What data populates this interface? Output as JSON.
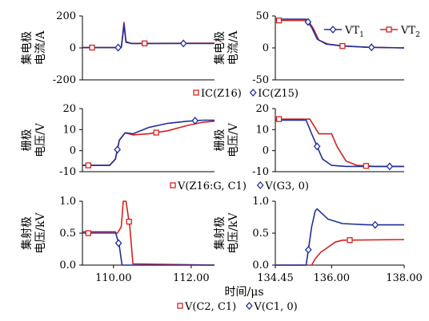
{
  "colors": {
    "red": "#d62020",
    "blue": "#1f2f9c",
    "axis": "#000000"
  },
  "chart_data": [
    {
      "id": "p1",
      "type": "line",
      "ylabel": [
        "集电极",
        "电流/A"
      ],
      "ylim": [
        -200,
        200
      ],
      "yticks": [
        -200,
        0,
        200
      ],
      "xlim": [
        109.2,
        112.6
      ],
      "xticks": [],
      "series": [
        {
          "key": "red",
          "x": [
            109.2,
            110.0,
            110.2,
            110.24,
            110.27,
            110.32,
            110.45,
            112.6
          ],
          "y": [
            2,
            2,
            2,
            90,
            160,
            40,
            28,
            30
          ],
          "marker": "square",
          "markers_at": [
            109.45,
            110.8
          ]
        },
        {
          "key": "blue",
          "x": [
            109.2,
            110.0,
            110.2,
            110.24,
            110.27,
            110.32,
            110.45,
            112.6
          ],
          "y": [
            2,
            2,
            2,
            80,
            150,
            35,
            28,
            28
          ],
          "marker": "diamond",
          "markers_at": [
            110.12,
            111.8
          ]
        }
      ]
    },
    {
      "id": "p2",
      "type": "line",
      "ylabel": [
        "集电极",
        "电流/A"
      ],
      "ylim": [
        -50,
        50
      ],
      "yticks": [
        -50,
        0,
        50
      ],
      "xlim": [
        134.45,
        138.0
      ],
      "xticks": [],
      "series": [
        {
          "key": "red",
          "x": [
            134.45,
            135.35,
            135.5,
            135.65,
            135.9,
            136.3,
            137.0,
            138.0
          ],
          "y": [
            43,
            43,
            30,
            12,
            6,
            3,
            1,
            0
          ],
          "marker": "square",
          "markers_at": [
            134.55,
            136.3
          ]
        },
        {
          "key": "blue",
          "x": [
            134.45,
            135.3,
            135.45,
            135.6,
            135.85,
            136.3,
            137.0,
            138.0
          ],
          "y": [
            45,
            45,
            32,
            14,
            6,
            3,
            1,
            0
          ],
          "marker": "diamond",
          "markers_at": [
            135.35,
            137.1
          ]
        }
      ],
      "legend": [
        {
          "key": "blue",
          "label": "VT",
          "sub": "1",
          "marker": "diamond"
        },
        {
          "key": "red",
          "label": "VT",
          "sub": "2",
          "marker": "square"
        }
      ]
    },
    {
      "id": "p3",
      "type": "line",
      "ylabel": [
        "栅极",
        "电压/V"
      ],
      "ylim": [
        -10,
        20
      ],
      "yticks": [
        -10,
        0,
        10,
        20
      ],
      "xlim": [
        109.2,
        112.6
      ],
      "xticks": [],
      "series": [
        {
          "key": "red",
          "x": [
            109.2,
            109.9,
            110.05,
            110.15,
            110.3,
            110.5,
            110.9,
            111.4,
            111.9,
            112.3,
            112.6
          ],
          "y": [
            -7,
            -7,
            -4,
            5,
            8.5,
            7.5,
            8,
            9.5,
            12,
            13.5,
            14
          ],
          "marker": "square",
          "markers_at": [
            109.35,
            111.1
          ]
        },
        {
          "key": "blue",
          "x": [
            109.2,
            109.9,
            110.05,
            110.15,
            110.3,
            110.5,
            110.9,
            111.4,
            111.9,
            112.3,
            112.6
          ],
          "y": [
            -7,
            -7,
            -4,
            5,
            8.5,
            8,
            11,
            13,
            14,
            14.5,
            14.5
          ],
          "marker": "diamond",
          "markers_at": [
            110.1,
            112.1
          ]
        }
      ]
    },
    {
      "id": "p4",
      "type": "line",
      "ylabel": [
        "栅极",
        "电压/V"
      ],
      "ylim": [
        -10,
        20
      ],
      "yticks": [
        -10,
        0,
        10,
        20
      ],
      "xlim": [
        134.45,
        138.0
      ],
      "xticks": [],
      "series": [
        {
          "key": "red",
          "x": [
            134.45,
            135.4,
            135.65,
            136.0,
            136.15,
            136.4,
            136.7,
            137.2,
            138.0
          ],
          "y": [
            15,
            15,
            8,
            8,
            2,
            -5,
            -7,
            -7.5,
            -7.5
          ],
          "marker": "square",
          "markers_at": [
            134.55,
            136.95
          ]
        },
        {
          "key": "blue",
          "x": [
            134.45,
            135.3,
            135.45,
            135.75,
            136.0,
            136.4,
            137.0,
            138.0
          ],
          "y": [
            14.5,
            14.5,
            8,
            -4,
            -7,
            -7.5,
            -7.5,
            -7.5
          ],
          "marker": "diamond",
          "markers_at": [
            135.6,
            137.6
          ]
        }
      ]
    },
    {
      "id": "p5",
      "type": "line",
      "ylabel": [
        "集射极",
        "电压/kV"
      ],
      "ylim": [
        0,
        1.0
      ],
      "yticks": [
        0,
        0.5,
        1.0
      ],
      "xlim": [
        109.2,
        112.6
      ],
      "xticks": [
        110.0,
        112.0
      ],
      "series": [
        {
          "key": "red",
          "x": [
            109.2,
            110.1,
            110.2,
            110.25,
            110.32,
            110.42,
            110.5,
            112.6
          ],
          "y": [
            0.5,
            0.5,
            0.6,
            1.0,
            1.0,
            0.6,
            0.02,
            0.0
          ],
          "marker": "square",
          "markers_at": [
            109.35,
            110.4
          ]
        },
        {
          "key": "blue",
          "x": [
            109.2,
            110.05,
            110.15,
            110.22,
            112.6
          ],
          "y": [
            0.52,
            0.52,
            0.3,
            0.0,
            0.0
          ],
          "marker": "diamond",
          "markers_at": [
            110.13
          ]
        }
      ]
    },
    {
      "id": "p6",
      "type": "line",
      "ylabel": [
        "集射极",
        "电压/kV"
      ],
      "ylim": [
        0,
        1.0
      ],
      "yticks": [
        0,
        0.5,
        1.0
      ],
      "xlim": [
        134.45,
        138.0
      ],
      "xticks": [
        134.45,
        136.0,
        138.0
      ],
      "series": [
        {
          "key": "red",
          "x": [
            134.45,
            135.45,
            135.55,
            135.7,
            135.9,
            136.1,
            136.3,
            138.0
          ],
          "y": [
            0,
            0,
            0.1,
            0.2,
            0.28,
            0.36,
            0.39,
            0.4
          ],
          "marker": "square",
          "markers_at": [
            136.5
          ]
        },
        {
          "key": "blue",
          "x": [
            134.45,
            135.3,
            135.45,
            135.55,
            135.6,
            135.9,
            136.3,
            137.0,
            138.0
          ],
          "y": [
            0,
            0,
            0.6,
            0.85,
            0.88,
            0.72,
            0.65,
            0.63,
            0.63
          ],
          "marker": "diamond",
          "markers_at": [
            135.36,
            137.2
          ]
        }
      ]
    }
  ],
  "legends": {
    "row1": [
      {
        "key": "red",
        "label": "IC(Z16)",
        "marker": "square"
      },
      {
        "key": "blue",
        "label": "IC(Z15)",
        "marker": "diamond"
      }
    ],
    "row2": [
      {
        "key": "red",
        "label": "V(Z16:G, C1)",
        "marker": "square"
      },
      {
        "key": "blue",
        "label": "V(G3, 0)",
        "marker": "diamond"
      }
    ],
    "row3": [
      {
        "key": "red",
        "label": "V(C2, C1)",
        "marker": "square"
      },
      {
        "key": "blue",
        "label": "V(C1, 0)",
        "marker": "diamond"
      }
    ]
  },
  "xlabel": "时间/μs"
}
